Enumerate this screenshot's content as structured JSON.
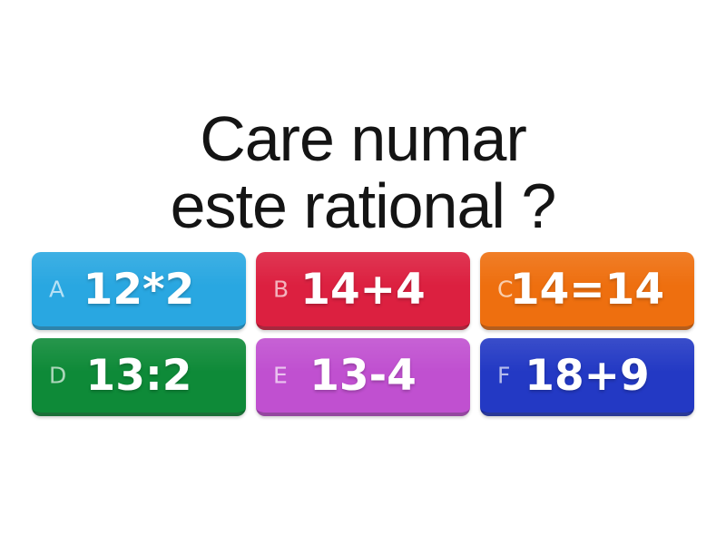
{
  "question": {
    "line1": "Care numar",
    "line2": "este rational ?"
  },
  "answers": [
    {
      "letter": "A",
      "text": "12*2",
      "color": "#29a7e1"
    },
    {
      "letter": "B",
      "text": "14+4",
      "color": "#dc2040"
    },
    {
      "letter": "C",
      "text": "14=14",
      "color": "#ee6f0f"
    },
    {
      "letter": "D",
      "text": "13:2",
      "color": "#0e8a38"
    },
    {
      "letter": "E",
      "text": "13-4",
      "color": "#c050d0"
    },
    {
      "letter": "F",
      "text": "18+9",
      "color": "#2339c4"
    }
  ],
  "colors": {
    "background": "#ffffff",
    "title_text": "#141414",
    "answer_text": "#ffffff"
  }
}
